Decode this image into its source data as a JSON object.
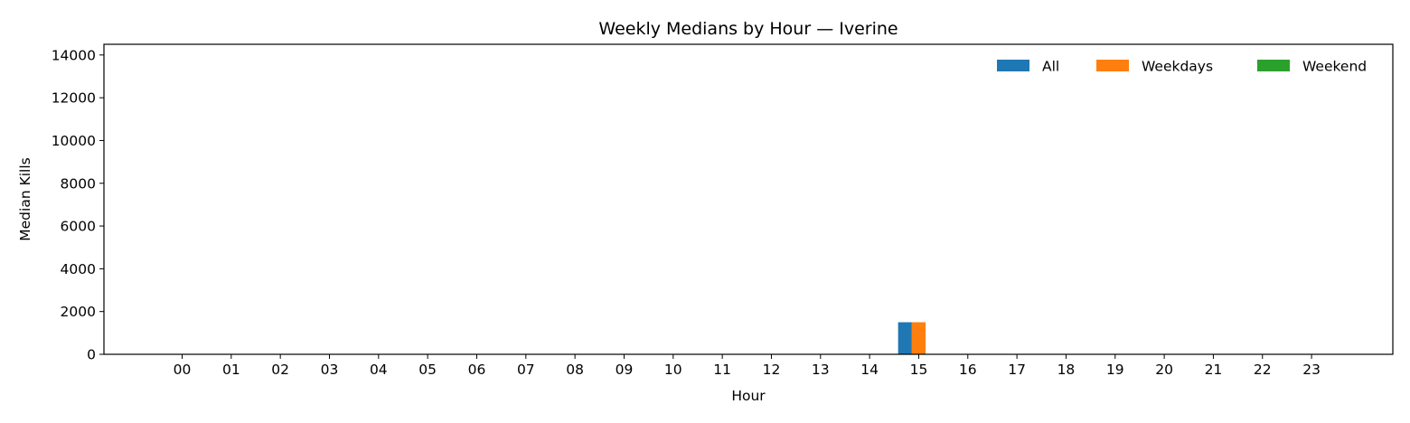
{
  "chart_data": {
    "type": "bar",
    "title": "Weekly Medians by Hour — Iverine",
    "xlabel": "Hour",
    "ylabel": "Median Kills",
    "categories": [
      "00",
      "01",
      "02",
      "03",
      "04",
      "05",
      "06",
      "07",
      "08",
      "09",
      "10",
      "11",
      "12",
      "13",
      "14",
      "15",
      "16",
      "17",
      "18",
      "19",
      "20",
      "21",
      "22",
      "23"
    ],
    "ylim": [
      0,
      14500
    ],
    "yticks": [
      0,
      2000,
      4000,
      6000,
      8000,
      10000,
      12000,
      14000
    ],
    "grid": false,
    "legend_position": "top-right",
    "series": [
      {
        "name": "All",
        "color": "#1f77b4",
        "values": [
          0,
          0,
          0,
          0,
          0,
          0,
          0,
          0,
          0,
          0,
          0,
          0,
          0,
          0,
          0,
          1500,
          0,
          0,
          0,
          0,
          0,
          0,
          0,
          0
        ]
      },
      {
        "name": "Weekdays",
        "color": "#ff7f0e",
        "values": [
          0,
          0,
          0,
          0,
          0,
          0,
          0,
          0,
          0,
          0,
          0,
          0,
          0,
          0,
          0,
          1500,
          0,
          0,
          0,
          0,
          0,
          0,
          0,
          0
        ]
      },
      {
        "name": "Weekend",
        "color": "#2ca02c",
        "values": [
          0,
          0,
          0,
          0,
          0,
          0,
          0,
          0,
          0,
          0,
          0,
          0,
          0,
          0,
          0,
          0,
          0,
          0,
          0,
          0,
          0,
          0,
          0,
          0
        ]
      }
    ]
  }
}
